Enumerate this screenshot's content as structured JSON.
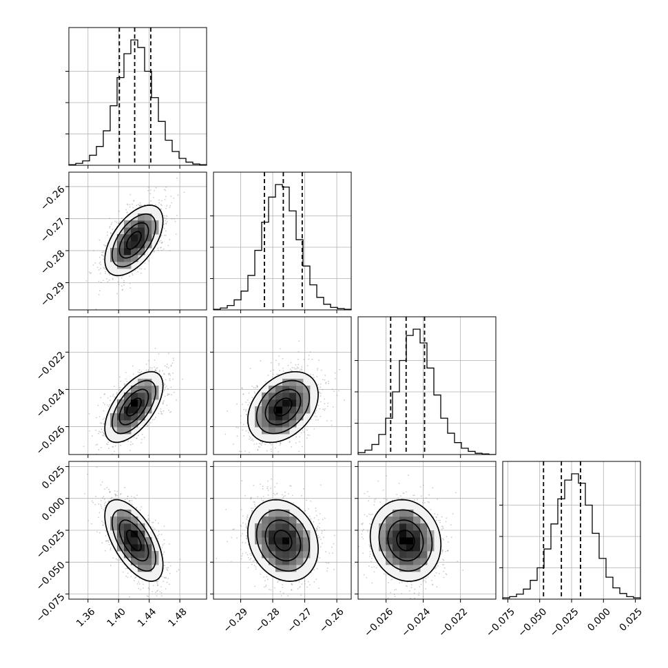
{
  "chart_data": {
    "type": "corner",
    "parameters": [
      {
        "mean": 1.42,
        "std": 0.019,
        "q16": 1.401,
        "q50": 1.421,
        "q84": 1.442,
        "range": [
          1.335,
          1.515
        ],
        "ticks": [
          1.36,
          1.4,
          1.44,
          1.48
        ],
        "tick_labels": [
          "1.36",
          "1.40",
          "1.44",
          "1.48"
        ]
      },
      {
        "mean": -0.2768,
        "std": 0.0055,
        "q16": -0.2826,
        "q50": -0.2767,
        "q84": -0.2708,
        "range": [
          -0.2985,
          -0.2555
        ],
        "ticks": [
          -0.29,
          -0.28,
          -0.27,
          -0.26
        ],
        "tick_labels": [
          "−0.29",
          "−0.28",
          "−0.27",
          "−0.26"
        ]
      },
      {
        "mean": -0.02495,
        "std": 0.00095,
        "q16": -0.02575,
        "q50": -0.02492,
        "q84": -0.02393,
        "range": [
          -0.0275,
          -0.0201
        ],
        "ticks": [
          -0.026,
          -0.024,
          -0.022
        ],
        "tick_labels": [
          "−0.026",
          "−0.024",
          "−0.022"
        ]
      },
      {
        "mean": -0.033,
        "std": 0.016,
        "q16": -0.047,
        "q50": -0.033,
        "q84": -0.018,
        "range": [
          -0.079,
          0.029
        ],
        "ticks": [
          -0.075,
          -0.05,
          -0.025,
          0.0,
          0.025
        ],
        "tick_labels": [
          "−0.075",
          "−0.050",
          "−0.025",
          "0.000",
          "0.025"
        ]
      }
    ],
    "correlations": [
      [
        1.0,
        0.55,
        0.6,
        -0.6
      ],
      [
        0.55,
        1.0,
        0.35,
        -0.2
      ],
      [
        0.6,
        0.35,
        1.0,
        -0.1
      ],
      [
        -0.6,
        -0.2,
        -0.1,
        1.0
      ]
    ],
    "histograms": {
      "bins": 20,
      "counts": [
        [
          1,
          3,
          7,
          16,
          30,
          55,
          95,
          140,
          178,
          200,
          188,
          150,
          108,
          70,
          40,
          22,
          11,
          5,
          2,
          1
        ],
        [
          1,
          3,
          7,
          16,
          30,
          55,
          95,
          140,
          180,
          200,
          196,
          158,
          112,
          70,
          40,
          20,
          9,
          4,
          2,
          1
        ],
        [
          3,
          7,
          16,
          32,
          58,
          100,
          150,
          190,
          200,
          178,
          138,
          95,
          58,
          34,
          19,
          10,
          5,
          2,
          1,
          0
        ],
        [
          2,
          4,
          8,
          16,
          30,
          50,
          80,
          120,
          160,
          190,
          200,
          185,
          150,
          105,
          65,
          35,
          18,
          9,
          4,
          2
        ]
      ]
    },
    "quantiles": [
      0.16,
      0.5,
      0.84
    ],
    "contour_levels_sigma": [
      0.5,
      1.0,
      1.5,
      2.0
    ],
    "grid": true,
    "title": "",
    "xlabel": "",
    "ylabel": ""
  }
}
